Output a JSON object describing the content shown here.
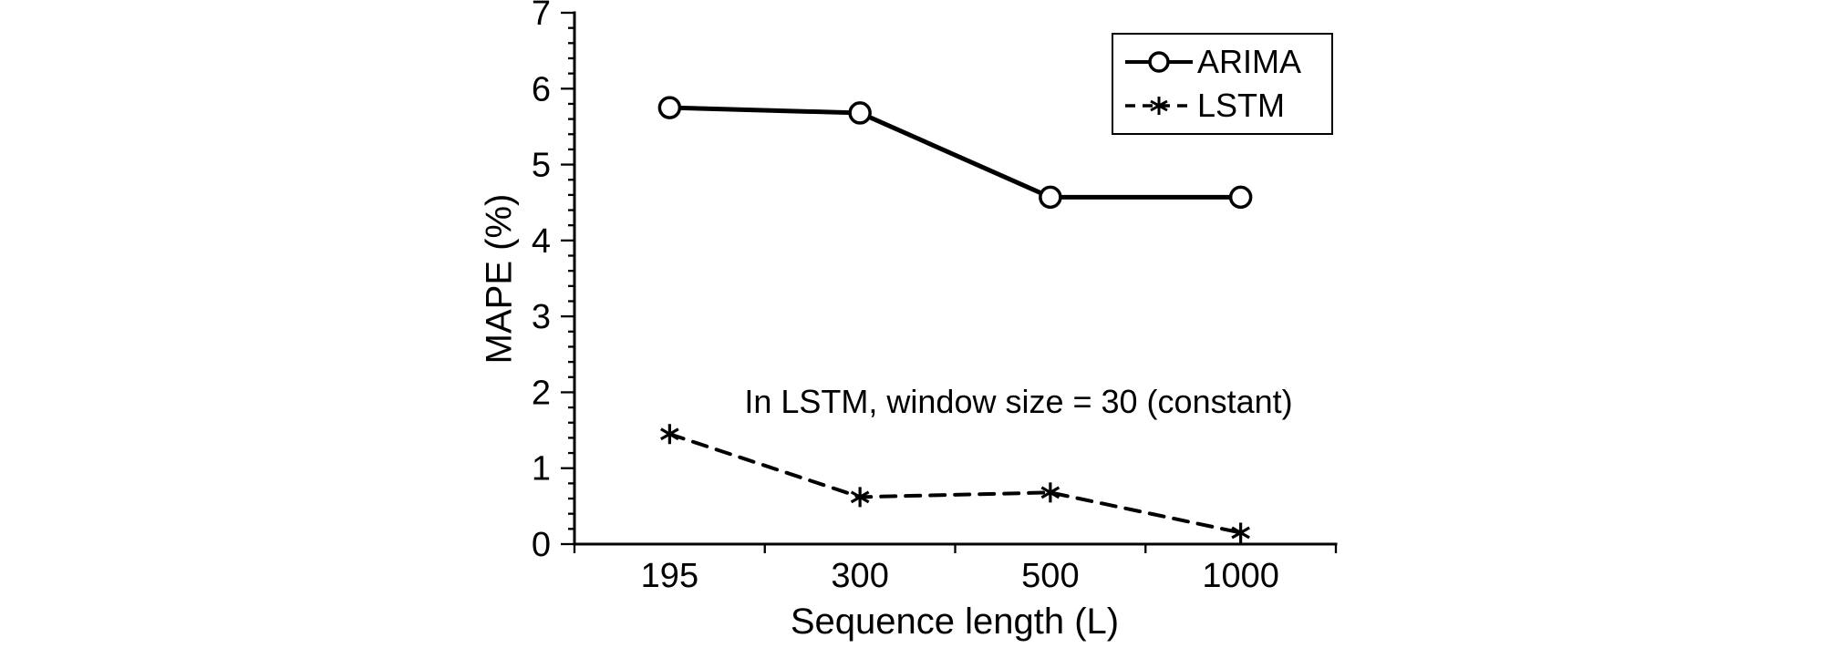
{
  "chart_data": {
    "type": "line",
    "x_type": "categorical",
    "categories": [
      "195",
      "300",
      "500",
      "1000"
    ],
    "series": [
      {
        "name": "ARIMA",
        "values": [
          5.75,
          5.68,
          4.57,
          4.57
        ],
        "line": "solid",
        "marker": "circle",
        "color": "#000000"
      },
      {
        "name": "LSTM",
        "values": [
          1.45,
          0.62,
          0.68,
          0.15
        ],
        "line": "dashed",
        "marker": "asterisk",
        "color": "#000000"
      }
    ],
    "title": "",
    "xlabel": "Sequence length (L)",
    "ylabel": "MAPE (%)",
    "ylim": [
      0,
      7
    ],
    "y_major_ticks": [
      0,
      1,
      2,
      3,
      4,
      5,
      6,
      7
    ],
    "y_minor_step": 0.2,
    "grid": false,
    "legend_position": "top-right",
    "annotation": "In LSTM, window size = 30 (constant)"
  }
}
